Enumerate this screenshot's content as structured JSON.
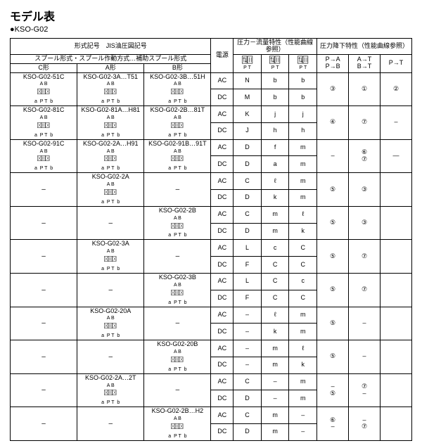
{
  "title": "モデル表",
  "sub": "●KSO-G02",
  "hdr": {
    "h1": "形式記号　JIS油圧図記号",
    "h2": "スプール形式・スプール作動方式…補助スプール形式",
    "c": "C形",
    "a": "A形",
    "b": "B形",
    "pwr": "電源",
    "f1": "圧力－流量特性（性能曲線参照）",
    "f2": "圧力降下特性（性能曲線参照）",
    "s1": "A,B\nP↓T",
    "s2": "A,B\nP↓T",
    "s3": "A,B\nP↓T",
    "pa": "P→A\nP→B",
    "at": "A→T\nB→T",
    "pt": "P→T"
  },
  "rows": [
    {
      "c": "KSO-G02-51C",
      "a": "KSO-G02-3A…T51",
      "b": "KSO-G02-3B…51H",
      "p": [
        "AC",
        "DC"
      ],
      "v": [
        [
          "N",
          "b",
          "b"
        ],
        [
          "M",
          "b",
          "b"
        ]
      ],
      "d": [
        "③",
        "①",
        "②"
      ]
    },
    {
      "c": "KSO-G02-81C",
      "a": "KSO-G02-81A…H81",
      "b": "KSO-G02-2B…81T",
      "p": [
        "AC",
        "DC"
      ],
      "v": [
        [
          "K",
          "j",
          "j"
        ],
        [
          "J",
          "h",
          "h"
        ]
      ],
      "d": [
        "④",
        "⑦",
        "–"
      ]
    },
    {
      "c": "KSO-G02-91C",
      "a": "KSO-G02-2A…H91",
      "b": "KSO-G02-91B…91T",
      "p": [
        "AC",
        "DC"
      ],
      "v": [
        [
          "D",
          "f",
          "m"
        ],
        [
          "D",
          "a",
          "m"
        ]
      ],
      "d": [
        "–",
        "⑥\n⑦",
        "—"
      ]
    },
    {
      "c": "–",
      "a": "KSO-G02-2A",
      "b": "–",
      "p": [
        "AC",
        "DC"
      ],
      "v": [
        [
          "C",
          "ℓ",
          "m"
        ],
        [
          "D",
          "k",
          "m"
        ]
      ],
      "d": [
        "⑤",
        "③",
        ""
      ]
    },
    {
      "c": "–",
      "a": "–",
      "b": "KSO-G02-2B",
      "p": [
        "AC",
        "DC"
      ],
      "v": [
        [
          "C",
          "m",
          "ℓ"
        ],
        [
          "D",
          "m",
          "k"
        ]
      ],
      "d": [
        "⑤",
        "③",
        ""
      ]
    },
    {
      "c": "–",
      "a": "KSO-G02-3A",
      "b": "–",
      "p": [
        "AC",
        "DC"
      ],
      "v": [
        [
          "L",
          "c",
          "C"
        ],
        [
          "F",
          "C",
          "C"
        ]
      ],
      "d": [
        "⑤",
        "⑦",
        ""
      ]
    },
    {
      "c": "–",
      "a": "–",
      "b": "KSO-G02-3B",
      "p": [
        "AC",
        "DC"
      ],
      "v": [
        [
          "L",
          "C",
          "c"
        ],
        [
          "F",
          "C",
          "C"
        ]
      ],
      "d": [
        "⑤",
        "⑦",
        ""
      ]
    },
    {
      "c": "–",
      "a": "KSO-G02-20A",
      "b": "–",
      "p": [
        "AC",
        "DC"
      ],
      "v": [
        [
          "",
          "ℓ",
          "m"
        ],
        [
          "",
          "k",
          "m"
        ]
      ],
      "d": [
        "⑤",
        "–",
        ""
      ]
    },
    {
      "c": "–",
      "a": "–",
      "b": "KSO-G02-20B",
      "p": [
        "AC",
        "DC"
      ],
      "v": [
        [
          "",
          "m",
          "ℓ"
        ],
        [
          "",
          "m",
          "k"
        ]
      ],
      "d": [
        "⑤",
        "–",
        ""
      ]
    },
    {
      "c": "–",
      "a": "KSO-G02-2A…2T",
      "b": "–",
      "p": [
        "AC",
        "DC"
      ],
      "v": [
        [
          "C",
          "",
          "m"
        ],
        [
          "D",
          "",
          "m"
        ]
      ],
      "d": [
        "–\n⑤",
        "⑦\n–",
        ""
      ]
    },
    {
      "c": "–",
      "a": "–",
      "b": "KSO-G02-2B…H2",
      "p": [
        "AC",
        "DC"
      ],
      "v": [
        [
          "C",
          "m",
          ""
        ],
        [
          "D",
          "m",
          ""
        ]
      ],
      "d": [
        "⑥\n–",
        "–\n⑦",
        ""
      ]
    }
  ],
  "symSVG": "<svg class='sym' viewBox='0 0 30 16'><rect x='0.5' y='2' width='9' height='12' fill='none' stroke='#000' stroke-width='0.8'/><rect x='10' y='2' width='9' height='12' fill='none' stroke='#000' stroke-width='0.8'/><rect x='19.5' y='2' width='9' height='12' fill='none' stroke='#000' stroke-width='0.8'/><line x1='2' y1='4' x2='8' y2='12' stroke='#000' stroke-width='0.7'/><line x1='8' y1='4' x2='2' y2='12' stroke='#000' stroke-width='0.7'/><line x1='13' y1='4' x2='13' y2='12' stroke='#000' stroke-width='0.7'/><line x1='16' y1='4' x2='16' y2='12' stroke='#000' stroke-width='0.7'/><line x1='22' y1='4' x2='28' y2='12' stroke='#000' stroke-width='0.7'/><line x1='28' y1='4' x2='22' y2='12' stroke='#000' stroke-width='0.7'/></svg>",
  "symMini": "<svg viewBox='0 0 20 14' width='20' height='12'><rect x='1' y='1' width='8' height='12' fill='none' stroke='#000' stroke-width='0.7'/><rect x='10' y='1' width='8' height='12' fill='none' stroke='#000' stroke-width='0.7'/><line x1='4' y1='3' x2='4' y2='11' stroke='#000' stroke-width='0.7'/><path d='M4 3 l-1.5 2 M4 3 l1.5 2' stroke='#000' stroke-width='0.6' fill='none'/><line x1='7' y1='3' x2='7' y2='11' stroke='#000' stroke-width='0.7'/><path d='M7 11 l-1.5 -2 M7 11 l1.5 -2' stroke='#000' stroke-width='0.6' fill='none'/><line x1='13' y1='3' x2='13' y2='11' stroke='#000' stroke-width='0.7'/><line x1='16' y1='3' x2='16' y2='11' stroke='#000' stroke-width='0.7'/></svg>"
}
